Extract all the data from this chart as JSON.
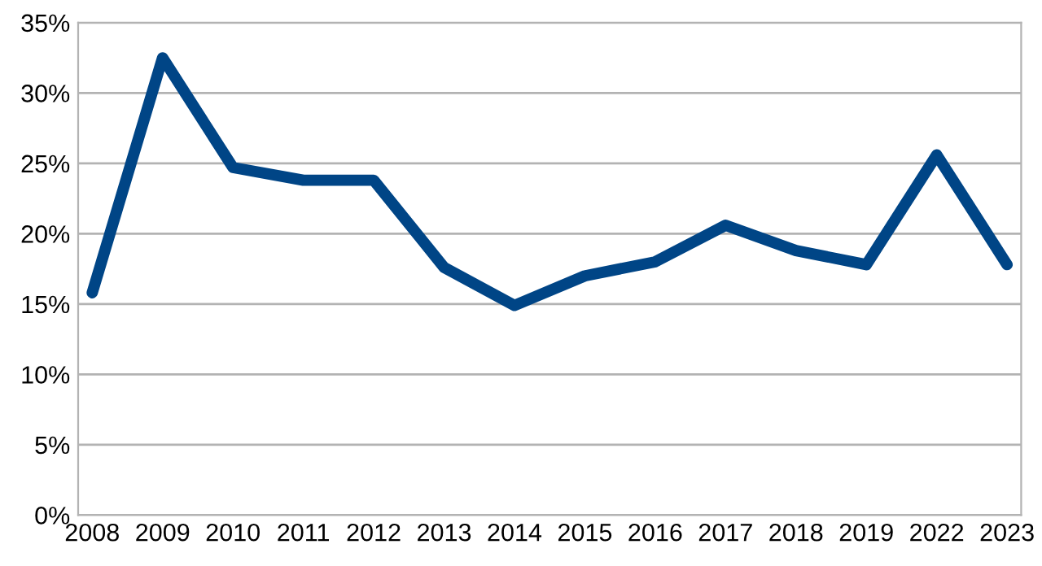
{
  "chart_data": {
    "type": "line",
    "categories": [
      "2008",
      "2009",
      "2010",
      "2011",
      "2012",
      "2013",
      "2014",
      "2015",
      "2016",
      "2017",
      "2018",
      "2019",
      "2022",
      "2023"
    ],
    "series": [
      {
        "color": "#004586",
        "values": [
          15.8,
          32.5,
          24.7,
          23.8,
          23.8,
          17.6,
          14.9,
          17.0,
          18.0,
          20.6,
          18.8,
          17.8,
          25.6,
          17.8
        ]
      }
    ],
    "ylim": [
      0,
      35
    ],
    "yticks": [
      {
        "value": 0,
        "label": "0%"
      },
      {
        "value": 5,
        "label": "5%"
      },
      {
        "value": 10,
        "label": "10%"
      },
      {
        "value": 15,
        "label": "15%"
      },
      {
        "value": 20,
        "label": "20%"
      },
      {
        "value": 25,
        "label": "25%"
      },
      {
        "value": 30,
        "label": "30%"
      },
      {
        "value": 35,
        "label": "35%"
      }
    ],
    "grid": "y",
    "line_style": "solid",
    "legend": false
  }
}
